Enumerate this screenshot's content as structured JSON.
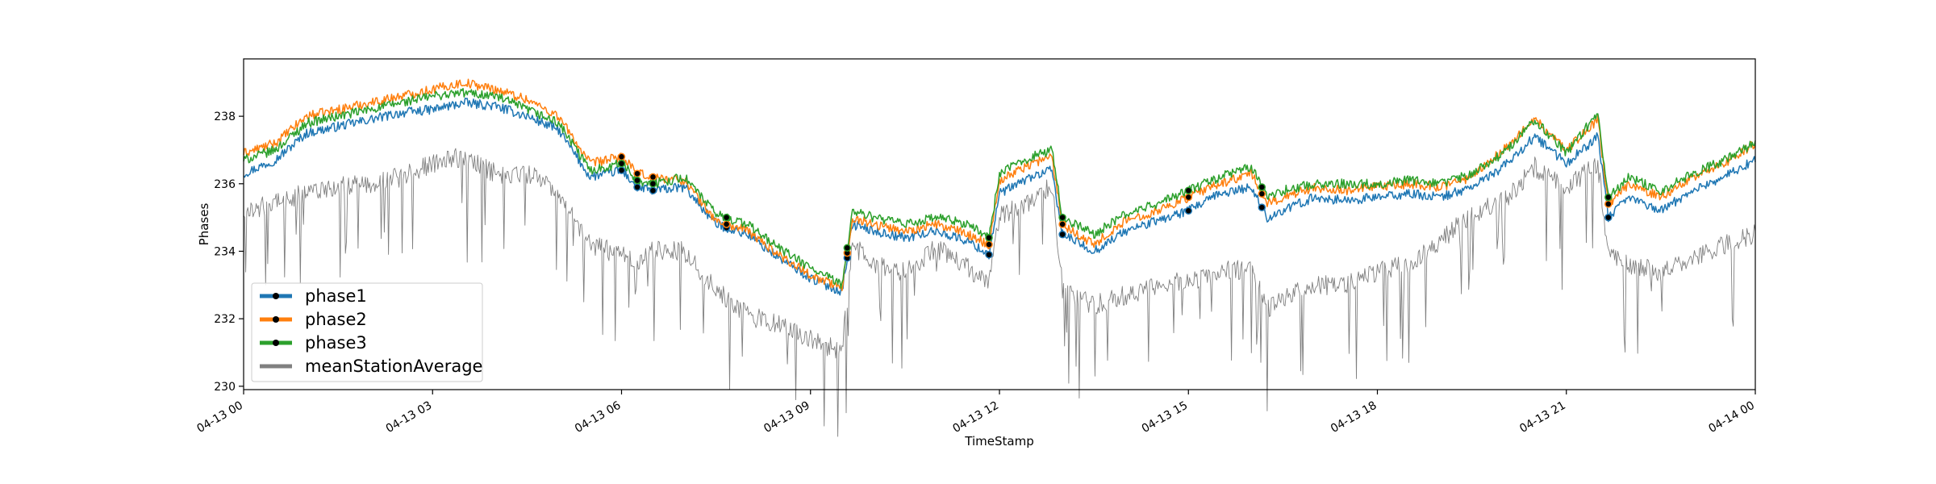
{
  "chart_data": {
    "type": "line",
    "title": "",
    "xlabel": "TimeStamp",
    "ylabel": "Phases",
    "xlim": [
      "2020-04-13 00:00",
      "2020-04-14 00:00"
    ],
    "ylim": [
      229.9,
      239.7
    ],
    "x_ticks": [
      "04-13 00",
      "04-13 03",
      "04-13 06",
      "04-13 09",
      "04-13 12",
      "04-13 15",
      "04-13 18",
      "04-13 21",
      "04-14 00"
    ],
    "y_ticks": [
      "230",
      "232",
      "234",
      "236",
      "238"
    ],
    "grid": false,
    "legend_position": "lower-left",
    "x": [
      "2020-04-13 00:00",
      "2020-04-13 00:30",
      "2020-04-13 01:00",
      "2020-04-13 01:30",
      "2020-04-13 02:00",
      "2020-04-13 02:30",
      "2020-04-13 03:00",
      "2020-04-13 03:30",
      "2020-04-13 04:00",
      "2020-04-13 04:30",
      "2020-04-13 05:00",
      "2020-04-13 05:30",
      "2020-04-13 06:00",
      "2020-04-13 06:15",
      "2020-04-13 06:30",
      "2020-04-13 07:00",
      "2020-04-13 07:30",
      "2020-04-13 08:00",
      "2020-04-13 08:30",
      "2020-04-13 09:00",
      "2020-04-13 09:30",
      "2020-04-13 09:40",
      "2020-04-13 10:00",
      "2020-04-13 10:30",
      "2020-04-13 11:00",
      "2020-04-13 11:30",
      "2020-04-13 11:50",
      "2020-04-13 12:00",
      "2020-04-13 12:30",
      "2020-04-13 12:50",
      "2020-04-13 13:00",
      "2020-04-13 13:30",
      "2020-04-13 14:00",
      "2020-04-13 14:30",
      "2020-04-13 15:00",
      "2020-04-13 15:30",
      "2020-04-13 16:00",
      "2020-04-13 16:15",
      "2020-04-13 16:30",
      "2020-04-13 17:00",
      "2020-04-13 17:30",
      "2020-04-13 18:00",
      "2020-04-13 18:30",
      "2020-04-13 19:00",
      "2020-04-13 19:30",
      "2020-04-13 20:00",
      "2020-04-13 20:30",
      "2020-04-13 21:00",
      "2020-04-13 21:30",
      "2020-04-13 21:40",
      "2020-04-13 22:00",
      "2020-04-13 22:30",
      "2020-04-13 23:00",
      "2020-04-13 23:30",
      "2020-04-14 00:00"
    ],
    "series": [
      {
        "name": "phase1",
        "color": "#1f77b4",
        "values": [
          236.3,
          236.7,
          237.5,
          237.7,
          237.9,
          238.1,
          238.2,
          238.4,
          238.3,
          238.0,
          237.6,
          236.2,
          236.4,
          235.9,
          235.8,
          235.9,
          234.8,
          234.5,
          233.8,
          233.2,
          232.8,
          234.8,
          234.6,
          234.4,
          234.6,
          234.3,
          233.9,
          235.7,
          236.2,
          236.4,
          234.5,
          234.0,
          234.6,
          234.9,
          235.2,
          235.7,
          235.9,
          235.0,
          235.2,
          235.6,
          235.5,
          235.6,
          235.7,
          235.6,
          235.9,
          236.5,
          237.4,
          236.6,
          237.4,
          235.0,
          235.6,
          235.2,
          235.8,
          236.2,
          236.7
        ]
      },
      {
        "name": "phase2",
        "color": "#ff7f0e",
        "values": [
          236.9,
          237.2,
          238.0,
          238.2,
          238.4,
          238.6,
          238.8,
          239.0,
          238.8,
          238.5,
          238.0,
          236.6,
          236.8,
          236.3,
          236.2,
          236.1,
          234.9,
          234.6,
          233.9,
          233.3,
          232.9,
          235.0,
          234.8,
          234.6,
          234.8,
          234.5,
          234.2,
          236.1,
          236.6,
          236.8,
          234.8,
          234.2,
          234.9,
          235.2,
          235.6,
          236.0,
          236.3,
          235.4,
          235.6,
          235.9,
          235.8,
          235.9,
          236.0,
          235.9,
          236.2,
          237.0,
          237.9,
          237.0,
          237.9,
          235.4,
          236.0,
          235.6,
          236.2,
          236.6,
          237.2
        ]
      },
      {
        "name": "phase3",
        "color": "#2ca02c",
        "values": [
          236.7,
          237.0,
          237.8,
          238.0,
          238.2,
          238.4,
          238.6,
          238.7,
          238.6,
          238.2,
          237.8,
          236.4,
          236.6,
          236.1,
          236.0,
          236.2,
          235.1,
          234.8,
          234.1,
          233.5,
          233.0,
          235.2,
          235.0,
          234.8,
          235.0,
          234.8,
          234.4,
          236.3,
          236.8,
          237.0,
          235.0,
          234.5,
          235.1,
          235.4,
          235.8,
          236.2,
          236.5,
          235.6,
          235.8,
          236.0,
          236.0,
          236.0,
          236.1,
          236.0,
          236.3,
          236.9,
          237.9,
          236.9,
          238.1,
          235.6,
          236.2,
          235.8,
          236.3,
          236.7,
          237.2
        ]
      },
      {
        "name": "meanStationAverage",
        "color": "#808080",
        "values": [
          235.1,
          235.5,
          235.7,
          235.9,
          236.0,
          236.2,
          236.6,
          236.8,
          236.3,
          236.3,
          235.8,
          234.2,
          233.9,
          233.7,
          234.0,
          234.0,
          232.9,
          232.1,
          231.8,
          231.4,
          231.0,
          234.2,
          233.6,
          233.4,
          234.1,
          233.5,
          233.0,
          235.0,
          235.5,
          236.0,
          232.9,
          232.4,
          232.7,
          233.0,
          233.1,
          233.4,
          233.5,
          232.3,
          232.6,
          233.0,
          233.0,
          233.4,
          233.6,
          234.3,
          235.1,
          235.5,
          236.5,
          235.9,
          236.6,
          233.9,
          233.6,
          233.4,
          233.8,
          234.2,
          234.5
        ]
      }
    ]
  }
}
